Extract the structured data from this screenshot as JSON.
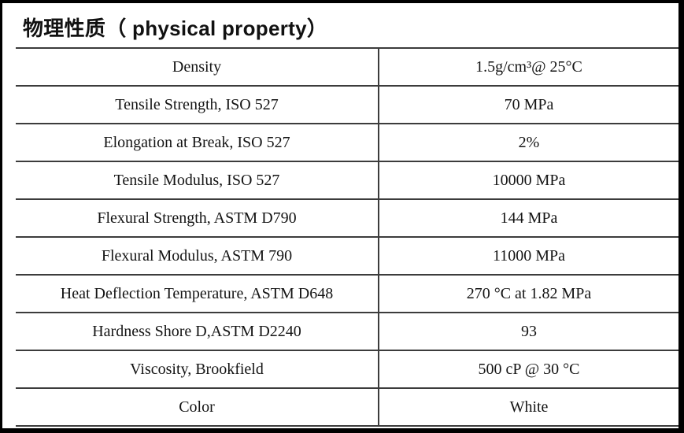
{
  "title": "物理性质（ physical property）",
  "table": {
    "rows": [
      {
        "property": "Density",
        "value": "1.5g/cm³@ 25°C"
      },
      {
        "property": "Tensile Strength, ISO 527",
        "value": "70 MPa"
      },
      {
        "property": "Elongation at Break, ISO 527",
        "value": "2%"
      },
      {
        "property": "Tensile Modulus, ISO 527",
        "value": "10000 MPa"
      },
      {
        "property": "Flexural Strength, ASTM D790",
        "value": "144 MPa"
      },
      {
        "property": "Flexural Modulus, ASTM 790",
        "value": "11000 MPa"
      },
      {
        "property": "Heat Deflection Temperature, ASTM D648",
        "value": "270 °C at 1.82 MPa"
      },
      {
        "property": "Hardness Shore D,ASTM D2240",
        "value": "93"
      },
      {
        "property": "Viscosity, Brookfield",
        "value": "500 cP @ 30 °C"
      },
      {
        "property": "Color",
        "value": "White"
      }
    ]
  },
  "colors": {
    "frame": "#000000",
    "rule_line": "#3c3c3c",
    "text": "#141414"
  }
}
